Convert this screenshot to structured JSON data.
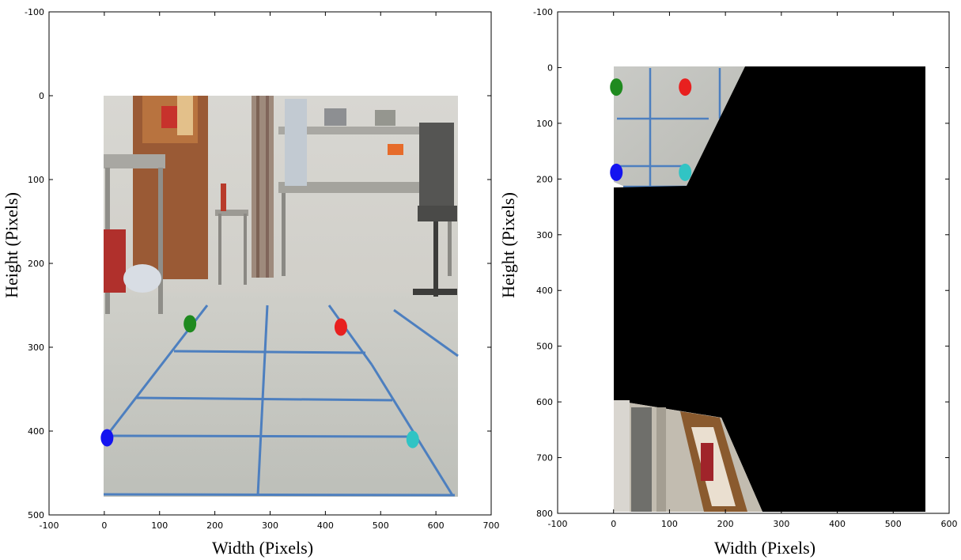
{
  "chart_data": [
    {
      "type": "scatter",
      "title": "",
      "xlabel": "Width (Pixels)",
      "ylabel": "Height (Pixels)",
      "xlim": [
        -100,
        700
      ],
      "ylim": [
        500,
        -100
      ],
      "xticks": [
        -100,
        0,
        100,
        200,
        300,
        400,
        500,
        600,
        700
      ],
      "yticks": [
        -100,
        0,
        100,
        200,
        300,
        400,
        500
      ],
      "image_extent": {
        "x": [
          0,
          640
        ],
        "y": [
          0,
          480
        ]
      },
      "image_content": "camera view of lab floor with blue tape grid",
      "series": [
        {
          "color": "#1f8a1f",
          "x": 155,
          "y": 272
        },
        {
          "color": "#e8201f",
          "x": 428,
          "y": 276
        },
        {
          "color": "#1414f0",
          "x": 5,
          "y": 408
        },
        {
          "color": "#31c4c4",
          "x": 558,
          "y": 410
        }
      ]
    },
    {
      "type": "scatter",
      "title": "",
      "xlabel": "Width (Pixels)",
      "ylabel": "Height (Pixels)",
      "xlim": [
        -100,
        600
      ],
      "ylim": [
        800,
        -100
      ],
      "xticks": [
        -100,
        0,
        100,
        200,
        300,
        400,
        500,
        600
      ],
      "yticks": [
        -100,
        0,
        100,
        200,
        300,
        400,
        500,
        600,
        700,
        800
      ],
      "image_extent": {
        "x": [
          0,
          560
        ],
        "y": [
          0,
          800
        ]
      },
      "image_content": "bird's-eye (warped) view, mostly black",
      "series": [
        {
          "color": "#1f8a1f",
          "x": 5,
          "y": 35
        },
        {
          "color": "#e8201f",
          "x": 128,
          "y": 35
        },
        {
          "color": "#1414f0",
          "x": 5,
          "y": 188
        },
        {
          "color": "#31c4c4",
          "x": 128,
          "y": 188
        }
      ]
    }
  ]
}
